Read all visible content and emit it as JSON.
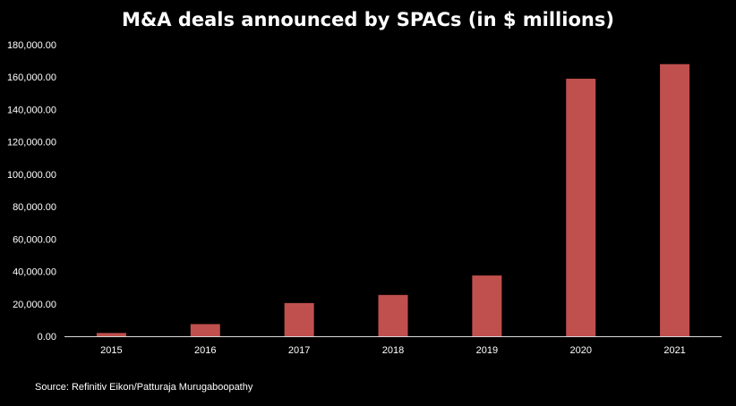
{
  "chart_data": {
    "type": "bar",
    "title": "M&A deals announced by SPACs (in $ millions)",
    "categories": [
      "2015",
      "2016",
      "2017",
      "2018",
      "2019",
      "2020",
      "2021"
    ],
    "values": [
      2000,
      7500,
      20500,
      25500,
      37500,
      159000,
      168000
    ],
    "xlabel": "",
    "ylabel": "",
    "ylim": [
      0,
      180000
    ],
    "yticks": [
      0,
      20000,
      40000,
      60000,
      80000,
      100000,
      120000,
      140000,
      160000,
      180000
    ],
    "ytick_labels": [
      "0.00",
      "20,000.00",
      "40,000.00",
      "60,000.00",
      "80,000.00",
      "100,000.00",
      "120,000.00",
      "140,000.00",
      "160,000.00",
      "180,000.00"
    ],
    "grid": false,
    "legend": "none",
    "colors": {
      "bar": "#c0504d",
      "background": "#000000",
      "text": "#ffffff",
      "axis": "#d9d9d9"
    }
  },
  "source": "Source: Refinitiv Eikon/Patturaja Murugaboopathy"
}
